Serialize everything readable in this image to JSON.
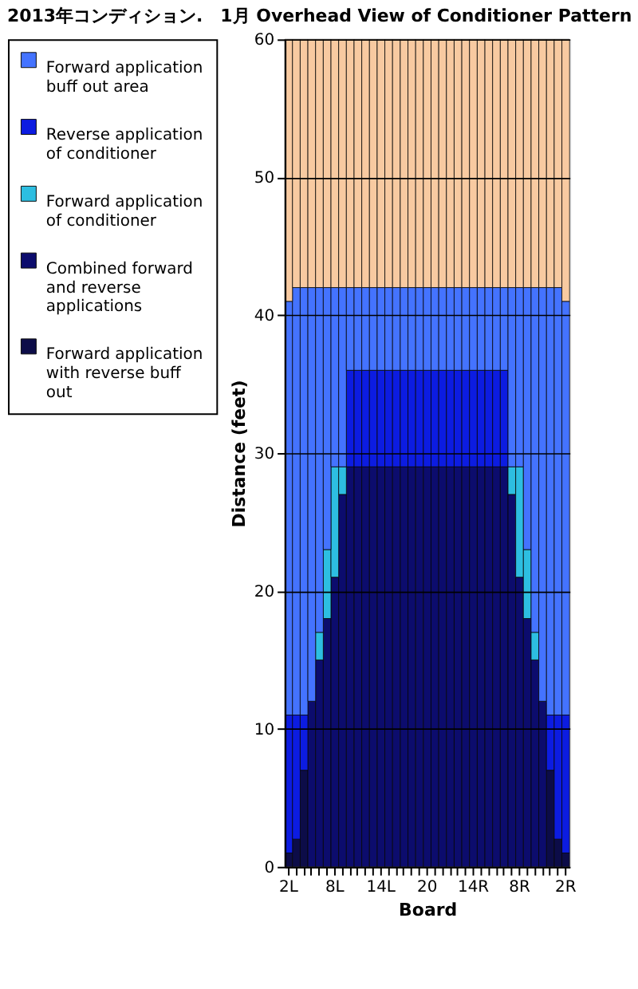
{
  "chart_data": {
    "type": "bar",
    "title": "2013年コンディション.　1月 Overhead View of Conditioner Pattern",
    "xlabel": "Board",
    "ylabel": "Distance (feet)",
    "categories": [
      "2L",
      null,
      null,
      null,
      null,
      null,
      "8L",
      null,
      null,
      null,
      null,
      null,
      "14L",
      null,
      null,
      null,
      null,
      null,
      "20",
      null,
      null,
      null,
      null,
      null,
      "14R",
      null,
      null,
      null,
      null,
      null,
      "8R",
      null,
      null,
      null,
      null,
      null,
      "2R"
    ],
    "stacked": true,
    "ylim": [
      0,
      60
    ],
    "yticks": [
      0,
      10,
      20,
      30,
      40,
      50,
      60
    ],
    "grid": "y",
    "legend": "left",
    "series": [
      {
        "name": "Forward application with reverse buff out",
        "color": "#00003f",
        "values": [
          1,
          2,
          7,
          null,
          null,
          null,
          null,
          null,
          null,
          null,
          null,
          null,
          null,
          null,
          null,
          null,
          null,
          null,
          null,
          null,
          null,
          null,
          null,
          null,
          null,
          null,
          null,
          null,
          null,
          null,
          null,
          null,
          null,
          null,
          7,
          2,
          1
        ]
      },
      {
        "name": "Combined forward and reverse applications",
        "color": "#000066",
        "values": [
          null,
          null,
          null,
          12,
          15,
          18,
          21,
          27,
          29,
          29,
          29,
          29,
          29,
          29,
          29,
          29,
          29,
          29,
          29,
          29,
          29,
          29,
          29,
          29,
          29,
          29,
          29,
          29,
          29,
          27,
          21,
          18,
          15,
          12,
          null,
          null,
          null
        ]
      },
      {
        "name": "Forward application of conditioner",
        "color": "#22bbe0",
        "values": [
          null,
          null,
          null,
          null,
          2,
          5,
          8,
          2,
          null,
          null,
          null,
          null,
          null,
          null,
          null,
          null,
          null,
          null,
          null,
          null,
          null,
          null,
          null,
          null,
          null,
          null,
          null,
          null,
          null,
          2,
          8,
          5,
          2,
          null,
          null,
          null,
          null
        ]
      },
      {
        "name": "Reverse application of conditioner",
        "color": "#0010e0",
        "values": [
          10,
          9,
          4,
          null,
          null,
          null,
          null,
          null,
          7,
          7,
          7,
          7,
          7,
          7,
          7,
          7,
          7,
          7,
          7,
          7,
          7,
          7,
          7,
          7,
          7,
          7,
          7,
          7,
          7,
          null,
          null,
          null,
          null,
          null,
          4,
          9,
          10
        ]
      },
      {
        "name": "Forward application buff out area",
        "color": "#3a6cff",
        "values": [
          30,
          31,
          31,
          30,
          25,
          19,
          13,
          13,
          6,
          6,
          6,
          6,
          6,
          6,
          6,
          6,
          6,
          6,
          6,
          6,
          6,
          6,
          6,
          6,
          6,
          6,
          6,
          6,
          6,
          13,
          13,
          19,
          25,
          30,
          31,
          31,
          30
        ]
      },
      {
        "color": "#f8c89c",
        "values": [
          19,
          18,
          18,
          18,
          18,
          18,
          18,
          18,
          18,
          18,
          18,
          18,
          18,
          18,
          18,
          18,
          18,
          18,
          18,
          18,
          18,
          18,
          18,
          18,
          18,
          18,
          18,
          18,
          18,
          18,
          18,
          18,
          18,
          18,
          18,
          18,
          19
        ]
      }
    ]
  }
}
